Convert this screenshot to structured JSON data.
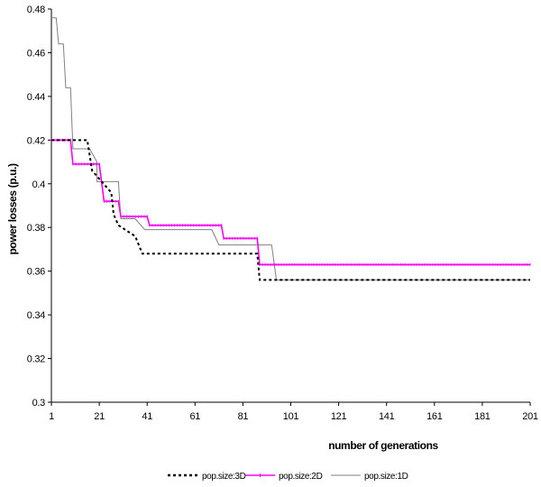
{
  "chart_data": {
    "type": "line",
    "xlabel": "number of generations",
    "ylabel": "power losses (p.u.)",
    "xlim": [
      1,
      201
    ],
    "ylim": [
      0.3,
      0.48
    ],
    "x_ticks": [
      1,
      21,
      41,
      61,
      81,
      101,
      121,
      141,
      161,
      181,
      201
    ],
    "x_tick_labels": [
      "1",
      "21",
      "41",
      "61",
      "81",
      "101",
      "121",
      "141",
      "161",
      "181",
      "201"
    ],
    "y_ticks": [
      0.3,
      0.32,
      0.34,
      0.36,
      0.38,
      0.4,
      0.42,
      0.44,
      0.46,
      0.48
    ],
    "y_tick_labels": [
      "0.3",
      "0.32",
      "0.34",
      "0.36",
      "0.38",
      "0.4",
      "0.42",
      "0.44",
      "0.46",
      "0.48"
    ],
    "grid": false,
    "legend_position": "bottom",
    "series": [
      {
        "name": "pop.size:3D",
        "color": "#000000",
        "style": "dotted",
        "points": [
          [
            1,
            0.42
          ],
          [
            11,
            0.42
          ],
          [
            16,
            0.42
          ],
          [
            18,
            0.406
          ],
          [
            26,
            0.396
          ],
          [
            27,
            0.386
          ],
          [
            29,
            0.381
          ],
          [
            36,
            0.376
          ],
          [
            39,
            0.368
          ],
          [
            87,
            0.368
          ],
          [
            88,
            0.356
          ],
          [
            201,
            0.356
          ]
        ]
      },
      {
        "name": "pop.size:2D",
        "color": "#ff00ff",
        "style": "solid-marker",
        "points": [
          [
            1,
            0.42
          ],
          [
            9,
            0.42
          ],
          [
            10,
            0.409
          ],
          [
            21,
            0.409
          ],
          [
            23,
            0.392
          ],
          [
            29,
            0.392
          ],
          [
            30,
            0.385
          ],
          [
            41,
            0.385
          ],
          [
            42,
            0.381
          ],
          [
            72,
            0.381
          ],
          [
            73,
            0.375
          ],
          [
            87,
            0.375
          ],
          [
            88,
            0.363
          ],
          [
            201,
            0.363
          ]
        ]
      },
      {
        "name": "pop.size:1D",
        "color": "#808080",
        "style": "solid",
        "points": [
          [
            1,
            0.476
          ],
          [
            3,
            0.476
          ],
          [
            4,
            0.464
          ],
          [
            6,
            0.464
          ],
          [
            7,
            0.444
          ],
          [
            9,
            0.444
          ],
          [
            10,
            0.416
          ],
          [
            17,
            0.416
          ],
          [
            20,
            0.41
          ],
          [
            20,
            0.401
          ],
          [
            29,
            0.401
          ],
          [
            30,
            0.384
          ],
          [
            36,
            0.384
          ],
          [
            40,
            0.379
          ],
          [
            68,
            0.379
          ],
          [
            71,
            0.372
          ],
          [
            87,
            0.372
          ],
          [
            93,
            0.372
          ],
          [
            95,
            0.356
          ],
          [
            201,
            0.356
          ]
        ]
      }
    ]
  }
}
